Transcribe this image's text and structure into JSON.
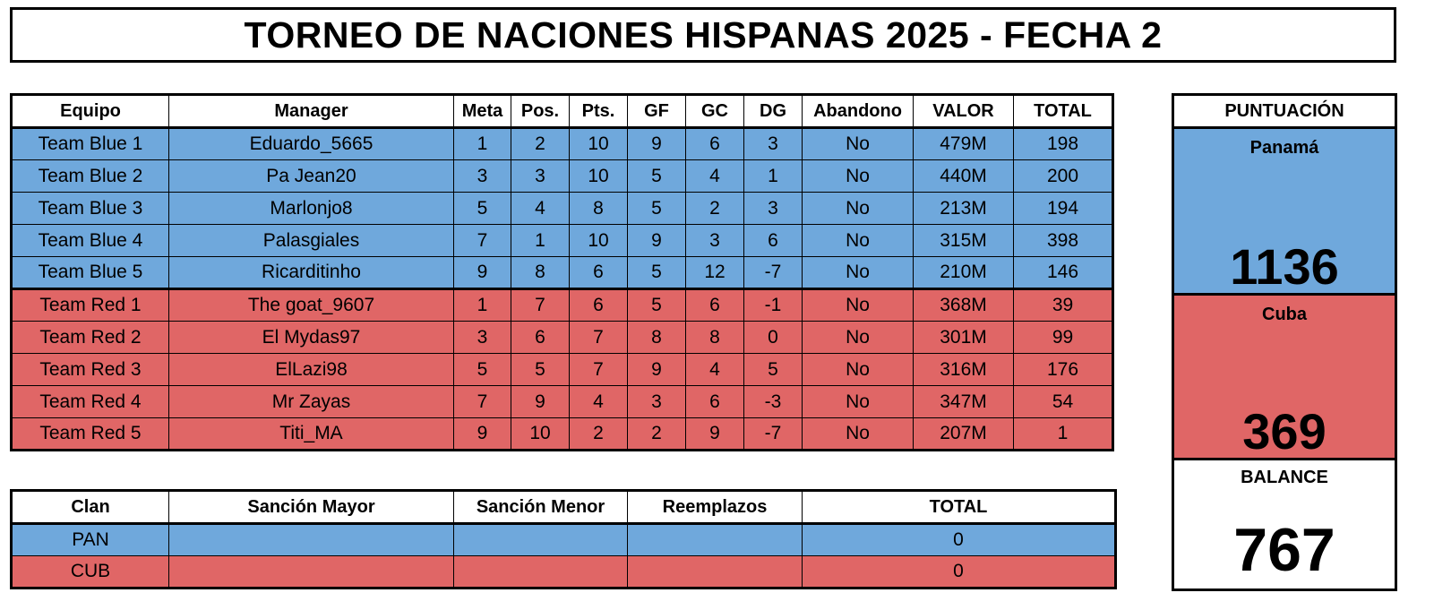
{
  "title": "TORNEO DE NACIONES HISPANAS 2025 - FECHA 2",
  "colors": {
    "blue": "#6fa8dc",
    "red": "#e06666"
  },
  "standings": {
    "headers": [
      "Equipo",
      "Manager",
      "Meta",
      "Pos.",
      "Pts.",
      "GF",
      "GC",
      "DG",
      "Abandono",
      "VALOR",
      "TOTAL"
    ],
    "rows": [
      [
        "Team Blue 1",
        "Eduardo_5665",
        "1",
        "2",
        "10",
        "9",
        "6",
        "3",
        "No",
        "479M",
        "198"
      ],
      [
        "Team Blue 2",
        "Pa Jean20",
        "3",
        "3",
        "10",
        "5",
        "4",
        "1",
        "No",
        "440M",
        "200"
      ],
      [
        "Team Blue 3",
        "Marlonjo8",
        "5",
        "4",
        "8",
        "5",
        "2",
        "3",
        "No",
        "213M",
        "194"
      ],
      [
        "Team Blue 4",
        "Palasgiales",
        "7",
        "1",
        "10",
        "9",
        "3",
        "6",
        "No",
        "315M",
        "398"
      ],
      [
        "Team Blue 5",
        "Ricarditinho",
        "9",
        "8",
        "6",
        "5",
        "12",
        "-7",
        "No",
        "210M",
        "146"
      ],
      [
        "Team Red 1",
        "The goat_9607",
        "1",
        "7",
        "6",
        "5",
        "6",
        "-1",
        "No",
        "368M",
        "39"
      ],
      [
        "Team Red 2",
        "El Mydas97",
        "3",
        "6",
        "7",
        "8",
        "8",
        "0",
        "No",
        "301M",
        "99"
      ],
      [
        "Team Red 3",
        "ElLazi98",
        "5",
        "5",
        "7",
        "9",
        "4",
        "5",
        "No",
        "316M",
        "176"
      ],
      [
        "Team Red 4",
        "Mr Zayas",
        "7",
        "9",
        "4",
        "3",
        "6",
        "-3",
        "No",
        "347M",
        "54"
      ],
      [
        "Team Red 5",
        "Titi_MA",
        "9",
        "10",
        "2",
        "2",
        "9",
        "-7",
        "No",
        "207M",
        "1"
      ]
    ]
  },
  "penalties": {
    "headers": [
      "Clan",
      "Sanción Mayor",
      "Sanción Menor",
      "Reemplazos",
      "TOTAL"
    ],
    "rows": [
      [
        "PAN",
        "",
        "",
        "",
        "0"
      ],
      [
        "CUB",
        "",
        "",
        "",
        "0"
      ]
    ]
  },
  "score": {
    "header": "PUNTUACIÓN",
    "team_a": {
      "name": "Panamá",
      "value": "1136"
    },
    "team_b": {
      "name": "Cuba",
      "value": "369"
    },
    "balance": {
      "label": "BALANCE",
      "value": "767"
    }
  }
}
